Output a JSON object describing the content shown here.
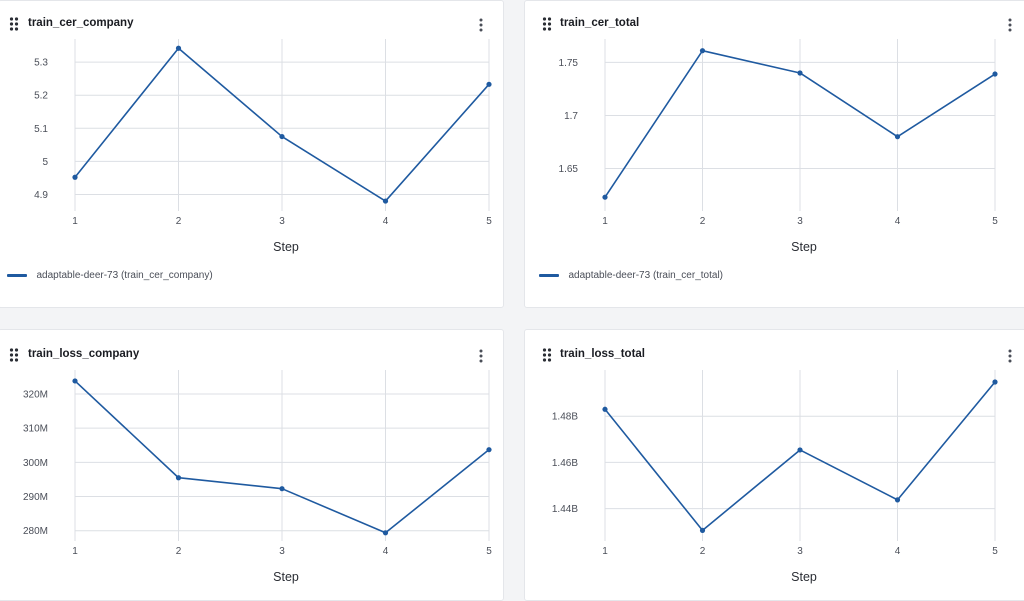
{
  "colors": {
    "series": "#1f5aa0",
    "grid": "#dcdfe4",
    "panel_bg": "#ffffff",
    "page_bg": "#f3f4f6"
  },
  "icons": {
    "drag": "drag-handle-icon",
    "menu": "more-vertical-icon"
  },
  "panels": [
    {
      "title": "train_cer_company",
      "legend": "adaptable-deer-73 (train_cer_company)",
      "chart_data": {
        "type": "line",
        "title": "train_cer_company",
        "xlabel": "Step",
        "ylabel": "",
        "x": [
          1,
          2,
          3,
          4,
          5
        ],
        "xticks": [
          "1",
          "2",
          "3",
          "4",
          "5"
        ],
        "ylim": [
          4.85,
          5.37
        ],
        "yticks": [
          4.9,
          5.0,
          5.1,
          5.2,
          5.3
        ],
        "ytick_labels": [
          "4.9",
          "5",
          "5.1",
          "5.2",
          "5.3"
        ],
        "grid": true,
        "legend_position": "bottom-left",
        "series": [
          {
            "name": "adaptable-deer-73 (train_cer_company)",
            "values": [
              4.952,
              5.342,
              5.075,
              4.88,
              5.233
            ]
          }
        ]
      }
    },
    {
      "title": "train_cer_total",
      "legend": "adaptable-deer-73 (train_cer_total)",
      "chart_data": {
        "type": "line",
        "title": "train_cer_total",
        "xlabel": "Step",
        "ylabel": "",
        "x": [
          1,
          2,
          3,
          4,
          5
        ],
        "xticks": [
          "1",
          "2",
          "3",
          "4",
          "5"
        ],
        "ylim": [
          1.61,
          1.772
        ],
        "yticks": [
          1.65,
          1.7,
          1.75
        ],
        "ytick_labels": [
          "1.65",
          "1.7",
          "1.75"
        ],
        "grid": true,
        "legend_position": "bottom-left",
        "series": [
          {
            "name": "adaptable-deer-73 (train_cer_total)",
            "values": [
              1.623,
              1.761,
              1.74,
              1.68,
              1.739
            ]
          }
        ]
      }
    },
    {
      "title": "train_loss_company",
      "legend": "",
      "chart_data": {
        "type": "line",
        "title": "train_loss_company",
        "xlabel": "Step",
        "ylabel": "",
        "x": [
          1,
          2,
          3,
          4,
          5
        ],
        "xticks": [
          "1",
          "2",
          "3",
          "4",
          "5"
        ],
        "ylim": [
          277000000,
          327000000
        ],
        "yticks": [
          280000000,
          290000000,
          300000000,
          310000000,
          320000000
        ],
        "ytick_labels": [
          "280M",
          "290M",
          "300M",
          "310M",
          "320M"
        ],
        "grid": true,
        "series": [
          {
            "values": [
              323800000,
              295500000,
              292300000,
              279400000,
              303700000
            ]
          }
        ]
      }
    },
    {
      "title": "train_loss_total",
      "legend": "",
      "chart_data": {
        "type": "line",
        "title": "train_loss_total",
        "xlabel": "Step",
        "ylabel": "",
        "x": [
          1,
          2,
          3,
          4,
          5
        ],
        "xticks": [
          "1",
          "2",
          "3",
          "4",
          "5"
        ],
        "ylim": [
          1426000000,
          1500000000
        ],
        "yticks": [
          1440000000,
          1460000000,
          1480000000
        ],
        "ytick_labels": [
          "1.44B",
          "1.46B",
          "1.48B"
        ],
        "grid": true,
        "series": [
          {
            "values": [
              1483000000,
              1430600000,
              1465400000,
              1443800000,
              1494800000
            ]
          }
        ]
      }
    }
  ]
}
